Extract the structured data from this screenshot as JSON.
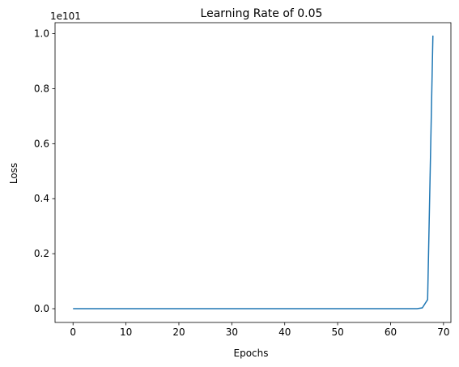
{
  "chart_data": {
    "type": "line",
    "title": "Learning Rate of 0.05",
    "xlabel": "Epochs",
    "ylabel": "Loss",
    "y_offset_text": "1e101",
    "y_scale_factor": 1e+101,
    "xlim": [
      -3.4,
      71.4
    ],
    "ylim": [
      -0.05,
      1.04
    ],
    "xticks": [
      0,
      10,
      20,
      30,
      40,
      50,
      60,
      70
    ],
    "yticks": [
      0.0,
      0.2,
      0.4,
      0.6,
      0.8,
      1.0
    ],
    "ytick_labels": [
      "0.0",
      "0.2",
      "0.4",
      "0.6",
      "0.8",
      "1.0"
    ],
    "grid": false,
    "series": [
      {
        "color": "#1f77b4",
        "x": [
          0,
          1,
          2,
          3,
          4,
          5,
          6,
          7,
          8,
          9,
          10,
          11,
          12,
          13,
          14,
          15,
          16,
          17,
          18,
          19,
          20,
          21,
          22,
          23,
          24,
          25,
          26,
          27,
          28,
          29,
          30,
          31,
          32,
          33,
          34,
          35,
          36,
          37,
          38,
          39,
          40,
          41,
          42,
          43,
          44,
          45,
          46,
          47,
          48,
          49,
          50,
          51,
          52,
          53,
          54,
          55,
          56,
          57,
          58,
          59,
          60,
          61,
          62,
          63,
          64,
          65,
          66,
          67,
          68
        ],
        "y": [
          0,
          0,
          0,
          0,
          0,
          0,
          0,
          0,
          0,
          0,
          0,
          0,
          0,
          0,
          0,
          0,
          0,
          0,
          0,
          0,
          0,
          0,
          0,
          0,
          0,
          0,
          0,
          0,
          0,
          0,
          0,
          0,
          0,
          0,
          0,
          0,
          0,
          0,
          0,
          0,
          0,
          0,
          0,
          0,
          0,
          0,
          0,
          0,
          0,
          0,
          0,
          0,
          0,
          0,
          0,
          0,
          0,
          0,
          0,
          0,
          0,
          0,
          0,
          0,
          0,
          0,
          0.003,
          0.033,
          0.993
        ]
      }
    ]
  }
}
